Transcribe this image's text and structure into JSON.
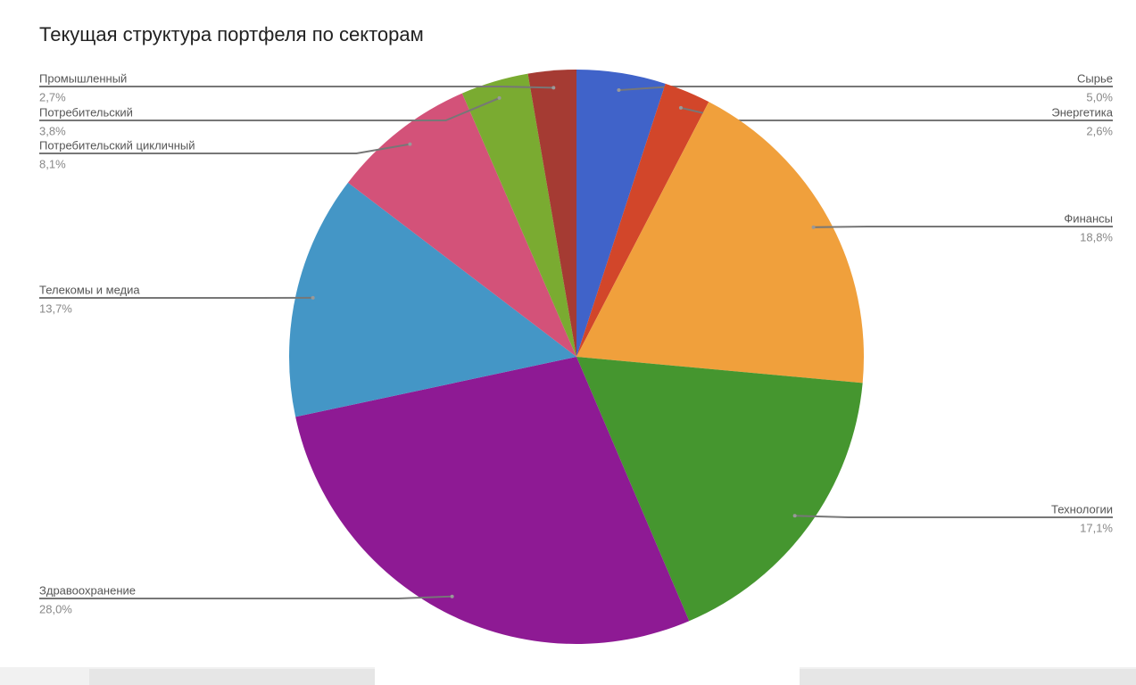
{
  "chart_data": {
    "type": "pie",
    "title": "Текущая структура портфеля по секторам",
    "categories": [
      "Сырье",
      "Энергетика",
      "Финансы",
      "Технологии",
      "Здравоохранение",
      "Телекомы и медиа",
      "Потребительский цикличный",
      "Потребительский",
      "Промышленный"
    ],
    "values": [
      5.0,
      2.6,
      18.8,
      17.1,
      28.0,
      13.7,
      8.1,
      3.8,
      2.7
    ],
    "value_labels": [
      "5,0%",
      "2,6%",
      "18,8%",
      "17,1%",
      "28,0%",
      "13,7%",
      "8,1%",
      "3,8%",
      "2,7%"
    ],
    "colors": [
      "#4063c9",
      "#d2462a",
      "#f0a03c",
      "#45962f",
      "#8e1a94",
      "#4496c6",
      "#d35279",
      "#7aab31",
      "#a53b33"
    ]
  }
}
